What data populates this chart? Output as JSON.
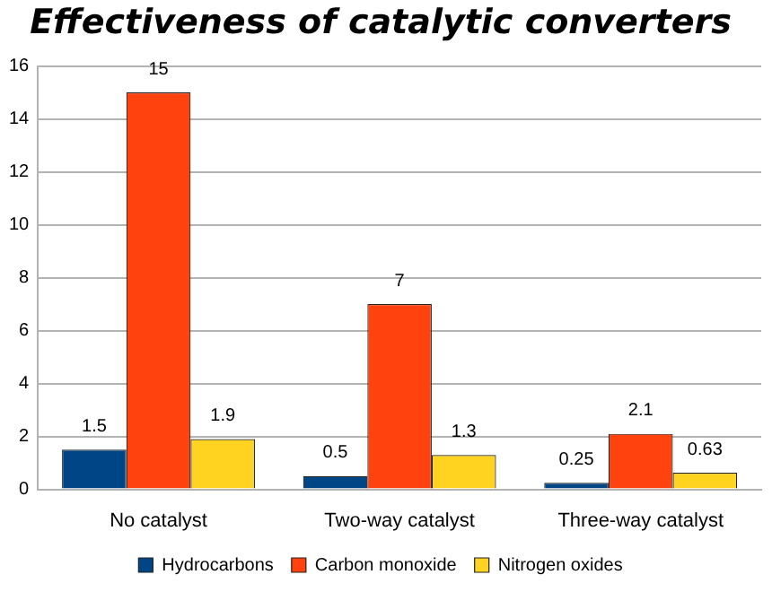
{
  "chart_data": {
    "type": "bar",
    "title": "Effectiveness of catalytic converters",
    "categories": [
      "No catalyst",
      "Two-way catalyst",
      "Three-way catalyst"
    ],
    "series": [
      {
        "name": "Hydrocarbons",
        "color": "#004586",
        "values": [
          1.5,
          0.5,
          0.25
        ]
      },
      {
        "name": "Carbon monoxide",
        "color": "#ff420e",
        "values": [
          15,
          7,
          2.1
        ]
      },
      {
        "name": "Nitrogen oxides",
        "color": "#ffd320",
        "values": [
          1.9,
          1.3,
          0.63
        ]
      }
    ],
    "ylim": [
      0,
      16
    ],
    "yticks": [
      0,
      2,
      4,
      6,
      8,
      10,
      12,
      14,
      16
    ],
    "grid": "y",
    "legend": "bottom",
    "data_labels": true
  }
}
